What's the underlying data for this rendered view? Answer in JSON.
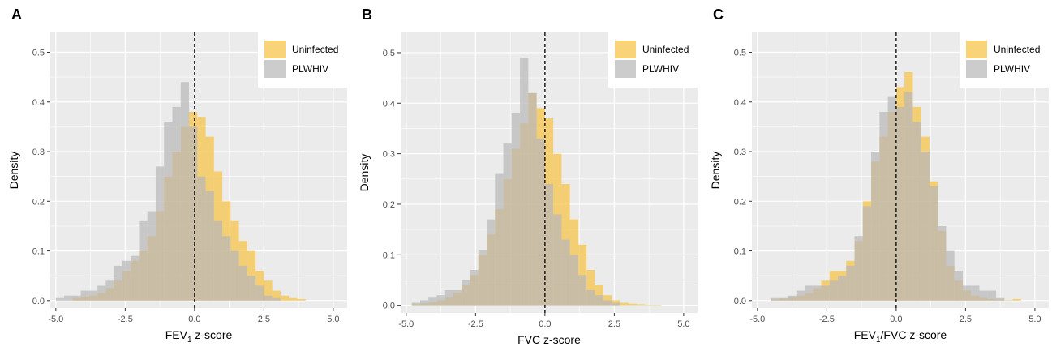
{
  "colors": {
    "uninfected": "#f5c242",
    "plwhiv": "#b8b8b8",
    "panel_bg": "#ebebeb",
    "grid": "#ffffff"
  },
  "chart_data": [
    {
      "type": "histogram",
      "panel_label": "A",
      "xlabel_main": "FEV",
      "xlabel_sub": "1",
      "xlabel_tail": " z-score",
      "ylabel": "Density",
      "xlim": [
        -5.2,
        5.5
      ],
      "ylim": [
        -0.015,
        0.54
      ],
      "xticks": [
        -5,
        -2.5,
        0,
        2.5,
        5
      ],
      "xtick_labels": [
        "-5.0",
        "-2.5",
        "0.0",
        "2.5",
        "5.0"
      ],
      "yticks": [
        0,
        0.1,
        0.2,
        0.3,
        0.4,
        0.5
      ],
      "ytick_labels": [
        "0.0",
        "0.1",
        "0.2",
        "0.3",
        "0.4",
        "0.5"
      ],
      "bin_start": -5.0,
      "bin_width": 0.3,
      "reference_line_x": 0,
      "legend": {
        "position": "top-right",
        "entries": [
          "Uninfected",
          "PLWHIV"
        ]
      },
      "series": [
        {
          "name": "Uninfected",
          "color_key": "uninfected",
          "values": [
            0,
            0,
            0.005,
            0.008,
            0.01,
            0.015,
            0.025,
            0.04,
            0.06,
            0.08,
            0.1,
            0.13,
            0.18,
            0.25,
            0.3,
            0.35,
            0.38,
            0.37,
            0.33,
            0.26,
            0.2,
            0.16,
            0.12,
            0.1,
            0.06,
            0.04,
            0.02,
            0.01,
            0.005,
            0.003
          ]
        },
        {
          "name": "PLWHIV",
          "color_key": "plwhiv",
          "values": [
            0.005,
            0.01,
            0.01,
            0.02,
            0.02,
            0.03,
            0.04,
            0.07,
            0.08,
            0.09,
            0.16,
            0.18,
            0.27,
            0.36,
            0.39,
            0.44,
            0.35,
            0.25,
            0.22,
            0.16,
            0.13,
            0.1,
            0.07,
            0.05,
            0.03,
            0.01,
            0.005,
            0,
            0,
            0
          ]
        }
      ]
    },
    {
      "type": "histogram",
      "panel_label": "B",
      "xlabel_main": "FVC z-score",
      "xlabel_sub": "",
      "xlabel_tail": "",
      "ylabel": "Density",
      "xlim": [
        -5.2,
        5.5
      ],
      "ylim": [
        -0.015,
        0.54
      ],
      "xticks": [
        -5,
        -2.5,
        0,
        2.5,
        5
      ],
      "xtick_labels": [
        "-5.0",
        "-2.5",
        "0.0",
        "2.5",
        "5.0"
      ],
      "yticks": [
        0,
        0.1,
        0.2,
        0.3,
        0.4,
        0.5
      ],
      "ytick_labels": [
        "0.0",
        "0.1",
        "0.2",
        "0.3",
        "0.4",
        "0.5"
      ],
      "bin_start": -4.8,
      "bin_width": 0.3,
      "reference_line_x": 0,
      "legend": {
        "position": "top-right",
        "entries": [
          "Uninfected",
          "PLWHIV"
        ]
      },
      "series": [
        {
          "name": "Uninfected",
          "color_key": "uninfected",
          "values": [
            0.002,
            0.004,
            0.006,
            0.01,
            0.015,
            0.025,
            0.04,
            0.06,
            0.1,
            0.14,
            0.19,
            0.25,
            0.31,
            0.36,
            0.42,
            0.39,
            0.37,
            0.3,
            0.24,
            0.17,
            0.12,
            0.07,
            0.04,
            0.02,
            0.01,
            0.005,
            0.003,
            0.002,
            0.001,
            0.001
          ]
        },
        {
          "name": "PLWHIV",
          "color_key": "plwhiv",
          "values": [
            0.005,
            0.01,
            0.015,
            0.02,
            0.03,
            0.03,
            0.05,
            0.07,
            0.11,
            0.17,
            0.26,
            0.32,
            0.38,
            0.49,
            0.42,
            0.33,
            0.24,
            0.18,
            0.13,
            0.1,
            0.06,
            0.03,
            0.02,
            0.01,
            0.005,
            0,
            0,
            0,
            0,
            0
          ]
        }
      ]
    },
    {
      "type": "histogram",
      "panel_label": "C",
      "xlabel_main": "FEV",
      "xlabel_sub": "1",
      "xlabel_tail": "/FVC z-score",
      "ylabel": "Density",
      "xlim": [
        -5.2,
        5.5
      ],
      "ylim": [
        -0.015,
        0.54
      ],
      "xticks": [
        -5,
        -2.5,
        0,
        2.5,
        5
      ],
      "xtick_labels": [
        "-5.0",
        "-2.5",
        "0.0",
        "2.5",
        "5.0"
      ],
      "yticks": [
        0,
        0.1,
        0.2,
        0.3,
        0.4,
        0.5
      ],
      "ytick_labels": [
        "0.0",
        "0.1",
        "0.2",
        "0.3",
        "0.4",
        "0.5"
      ],
      "bin_start": -4.5,
      "bin_width": 0.3,
      "reference_line_x": 0,
      "legend": {
        "position": "top-right",
        "entries": [
          "Uninfected",
          "PLWHIV"
        ]
      },
      "series": [
        {
          "name": "Uninfected",
          "color_key": "uninfected",
          "values": [
            0.002,
            0.004,
            0.006,
            0.01,
            0.015,
            0.025,
            0.04,
            0.06,
            0.06,
            0.08,
            0.12,
            0.2,
            0.28,
            0.33,
            0.38,
            0.43,
            0.46,
            0.39,
            0.33,
            0.24,
            0.14,
            0.07,
            0.04,
            0.02,
            0.01,
            0.005,
            0.003,
            0.002,
            0.001,
            0.003
          ]
        },
        {
          "name": "PLWHIV",
          "color_key": "plwhiv",
          "values": [
            0.005,
            0.005,
            0.01,
            0.02,
            0.03,
            0.03,
            0.03,
            0.04,
            0.05,
            0.07,
            0.13,
            0.19,
            0.3,
            0.38,
            0.41,
            0.39,
            0.42,
            0.36,
            0.3,
            0.23,
            0.15,
            0.1,
            0.06,
            0.03,
            0.03,
            0.02,
            0.02,
            0.005,
            0,
            0
          ]
        }
      ]
    }
  ]
}
